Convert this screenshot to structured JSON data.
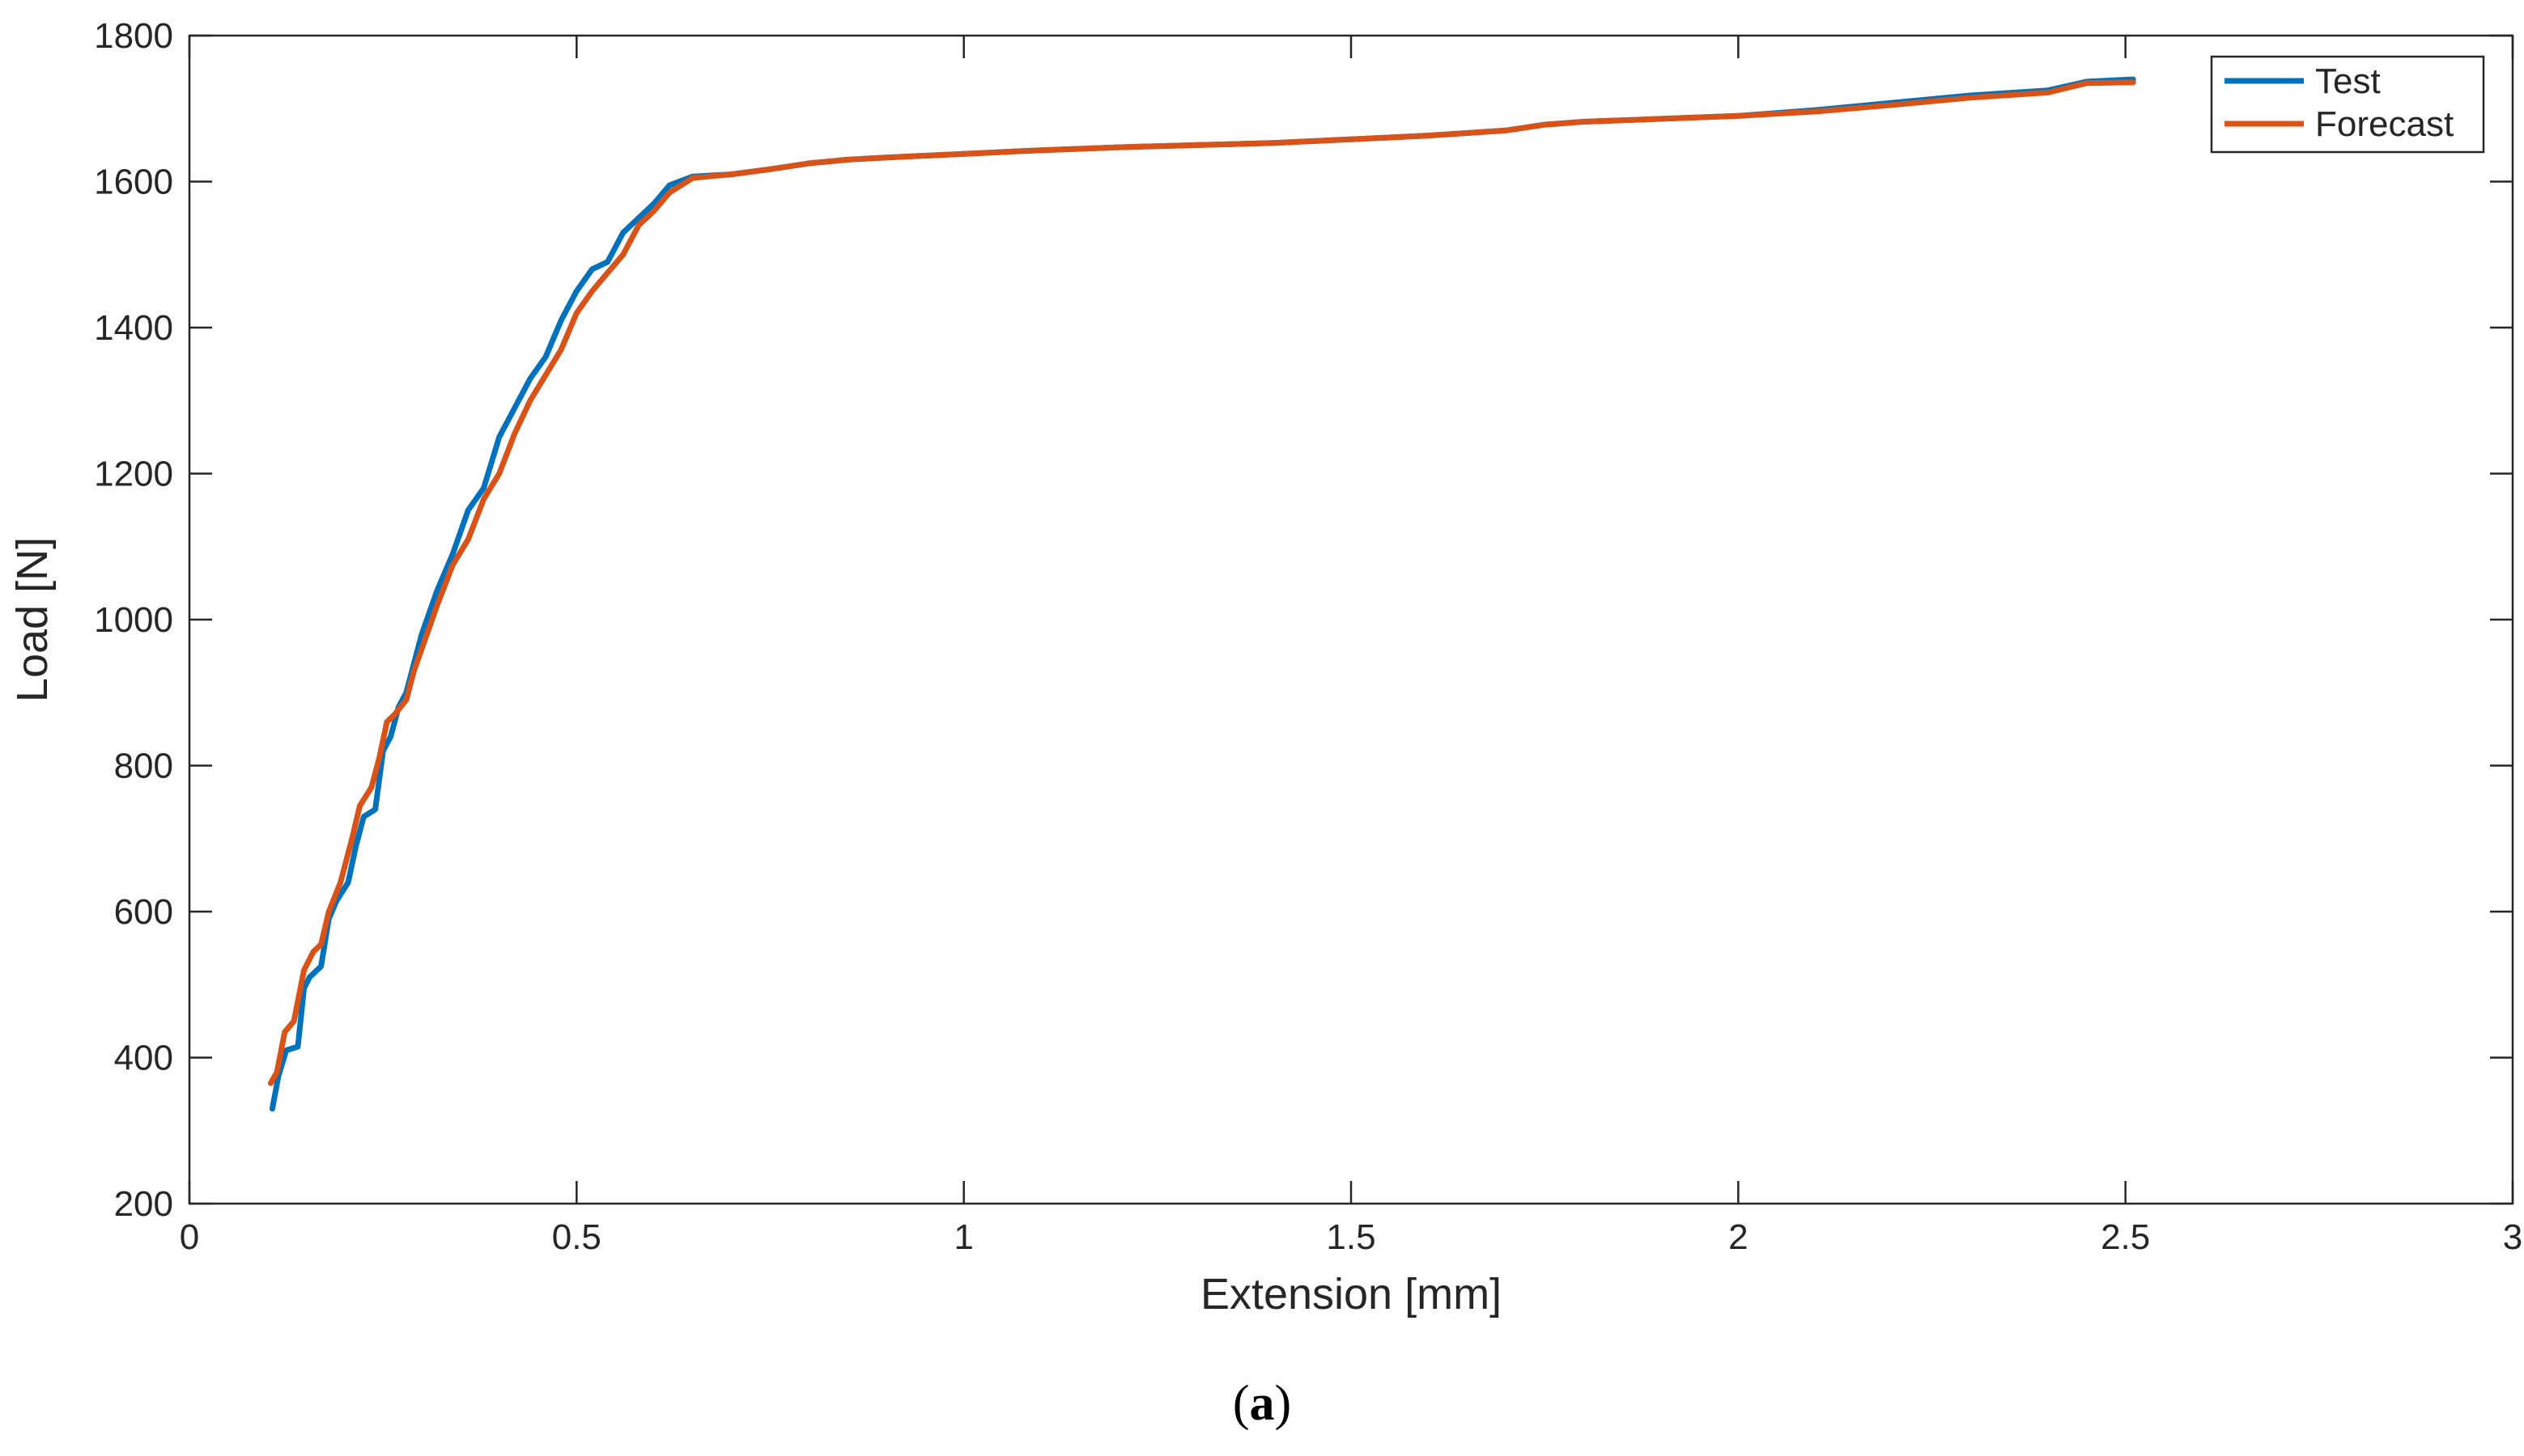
{
  "chart_data": {
    "type": "line",
    "xlabel": "Extension [mm]",
    "ylabel": "Load [N]",
    "xlim": [
      0,
      3
    ],
    "ylim": [
      200,
      1800
    ],
    "xticks": [
      0,
      0.5,
      1,
      1.5,
      2,
      2.5,
      3
    ],
    "yticks": [
      200,
      400,
      600,
      800,
      1000,
      1200,
      1400,
      1600,
      1800
    ],
    "xtick_labels": [
      "0",
      "0.5",
      "1",
      "1.5",
      "2",
      "2.5",
      "3"
    ],
    "ytick_labels": [
      "200",
      "400",
      "600",
      "800",
      "1000",
      "1200",
      "1400",
      "1600",
      "1800"
    ],
    "grid": false,
    "legend_position": "top-right",
    "series": [
      {
        "name": "Test",
        "color": "#0072BD",
        "x": [
          0.107,
          0.115,
          0.125,
          0.14,
          0.148,
          0.155,
          0.17,
          0.18,
          0.19,
          0.205,
          0.215,
          0.225,
          0.24,
          0.25,
          0.26,
          0.27,
          0.28,
          0.29,
          0.3,
          0.32,
          0.34,
          0.36,
          0.38,
          0.4,
          0.42,
          0.44,
          0.46,
          0.48,
          0.5,
          0.52,
          0.54,
          0.56,
          0.58,
          0.6,
          0.62,
          0.65,
          0.7,
          0.75,
          0.8,
          0.85,
          0.9,
          1.0,
          1.1,
          1.2,
          1.3,
          1.4,
          1.5,
          1.6,
          1.7,
          1.75,
          1.8,
          1.9,
          2.0,
          2.1,
          2.2,
          2.3,
          2.4,
          2.45,
          2.51
        ],
        "y": [
          330,
          375,
          410,
          415,
          495,
          510,
          525,
          590,
          615,
          640,
          690,
          730,
          740,
          820,
          840,
          880,
          900,
          940,
          980,
          1040,
          1090,
          1150,
          1180,
          1250,
          1290,
          1330,
          1360,
          1410,
          1450,
          1480,
          1490,
          1530,
          1550,
          1570,
          1595,
          1607,
          1610,
          1617,
          1625,
          1630,
          1633,
          1638,
          1643,
          1647,
          1650,
          1653,
          1658,
          1663,
          1670,
          1678,
          1682,
          1686,
          1690,
          1698,
          1708,
          1718,
          1725,
          1737,
          1740
        ]
      },
      {
        "name": "Forecast",
        "color": "#D95319",
        "x": [
          0.105,
          0.113,
          0.123,
          0.135,
          0.148,
          0.16,
          0.17,
          0.18,
          0.195,
          0.21,
          0.22,
          0.235,
          0.245,
          0.255,
          0.265,
          0.28,
          0.29,
          0.3,
          0.32,
          0.34,
          0.36,
          0.38,
          0.4,
          0.42,
          0.44,
          0.46,
          0.48,
          0.5,
          0.52,
          0.54,
          0.56,
          0.58,
          0.6,
          0.62,
          0.65,
          0.7,
          0.75,
          0.8,
          0.85,
          0.9,
          1.0,
          1.1,
          1.2,
          1.3,
          1.4,
          1.5,
          1.6,
          1.7,
          1.75,
          1.8,
          1.9,
          2.0,
          2.1,
          2.2,
          2.3,
          2.4,
          2.45,
          2.51
        ],
        "y": [
          365,
          380,
          435,
          450,
          520,
          545,
          555,
          600,
          640,
          700,
          745,
          770,
          810,
          860,
          870,
          890,
          930,
          960,
          1020,
          1075,
          1110,
          1165,
          1200,
          1255,
          1300,
          1335,
          1370,
          1420,
          1450,
          1475,
          1500,
          1540,
          1560,
          1585,
          1605,
          1610,
          1617,
          1625,
          1630,
          1633,
          1638,
          1643,
          1647,
          1650,
          1653,
          1658,
          1663,
          1670,
          1678,
          1682,
          1686,
          1690,
          1696,
          1705,
          1715,
          1722,
          1735,
          1736
        ]
      }
    ]
  },
  "caption": {
    "open": "(",
    "letter": "a",
    "close": ")"
  }
}
